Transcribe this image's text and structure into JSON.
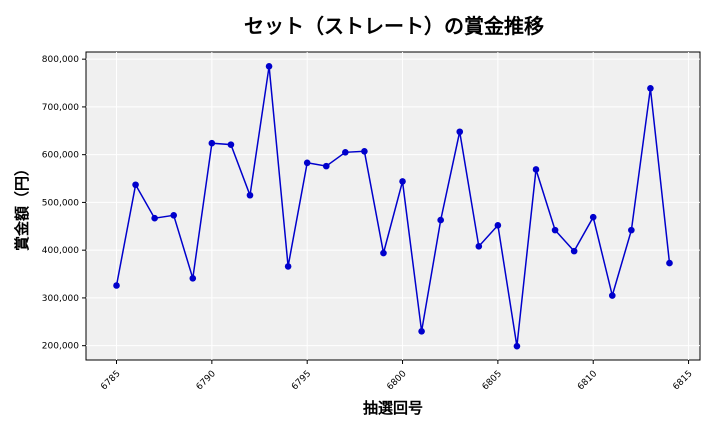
{
  "chart_data": {
    "type": "line",
    "title": "セット（ストレート）の賞金推移",
    "xlabel": "抽選回号",
    "ylabel": "賞金額（円）",
    "xlim": [
      6783.4,
      6815.6
    ],
    "ylim": [
      170000,
      815000
    ],
    "x_ticks": [
      6785,
      6790,
      6795,
      6800,
      6805,
      6810,
      6815
    ],
    "y_ticks": [
      200000,
      300000,
      400000,
      500000,
      600000,
      700000,
      800000
    ],
    "y_tick_labels": [
      "200,000",
      "300,000",
      "400,000",
      "500,000",
      "600,000",
      "700,000",
      "800,000"
    ],
    "grid": true,
    "series": [
      {
        "color": "#0000cc",
        "x": [
          6785,
          6786,
          6787,
          6788,
          6789,
          6790,
          6791,
          6792,
          6793,
          6794,
          6795,
          6796,
          6797,
          6798,
          6799,
          6800,
          6801,
          6802,
          6803,
          6804,
          6805,
          6806,
          6807,
          6808,
          6809,
          6810,
          6811,
          6812,
          6813,
          6814
        ],
        "values": [
          326000,
          537000,
          467000,
          473000,
          341000,
          624000,
          621000,
          515000,
          785000,
          366000,
          583000,
          576000,
          605000,
          607000,
          394000,
          544000,
          230000,
          463000,
          648000,
          408000,
          452000,
          199000,
          569000,
          442000,
          398000,
          469000,
          305000,
          442000,
          739000,
          373000
        ]
      }
    ]
  }
}
